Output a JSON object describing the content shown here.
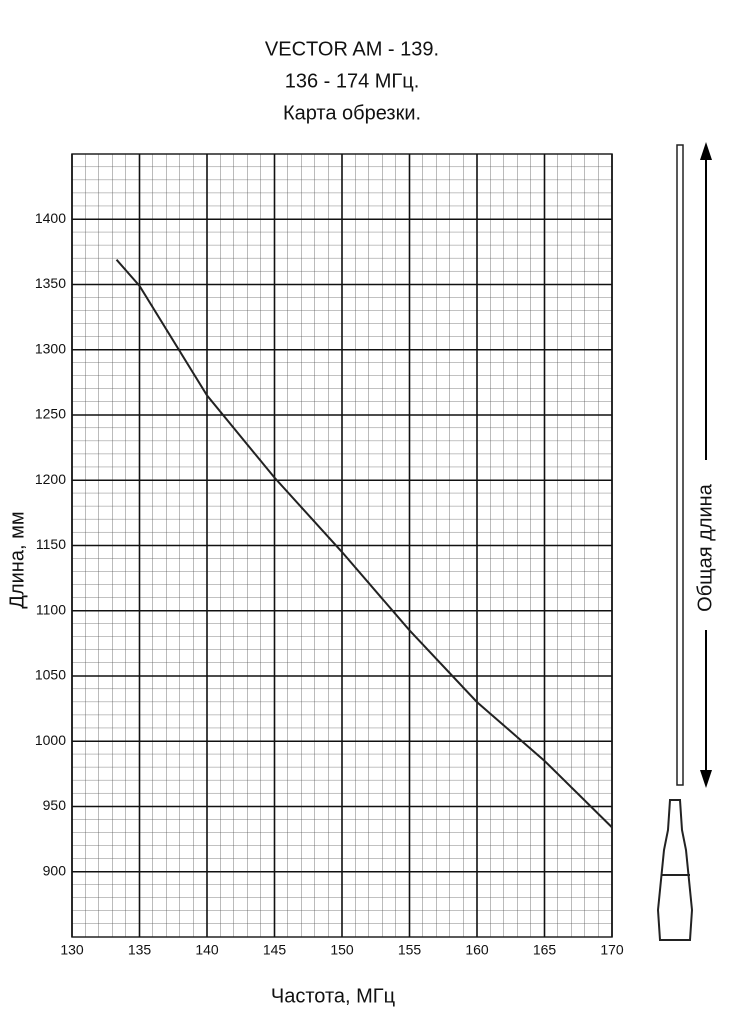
{
  "chart_data": {
    "type": "line",
    "title": [
      "VECTOR AM - 139.",
      "136 - 174 МГц.",
      "Карта обрезки."
    ],
    "x_label": "Частота, МГц",
    "y_label": "Длина, мм",
    "annotation": "Общая длина",
    "x": [
      133.3,
      135,
      140,
      145,
      150,
      155,
      160,
      165,
      170
    ],
    "series": [
      {
        "color": "#222222",
        "values": [
          1369,
          1349,
          1265,
          1202,
          1145,
          1085,
          1030,
          985,
          934
        ]
      }
    ],
    "xlim": [
      130,
      170
    ],
    "xticks": [
      130,
      135,
      140,
      145,
      150,
      155,
      160,
      165,
      170
    ],
    "ylim": [
      850,
      1450
    ],
    "yticks": [
      900,
      950,
      1000,
      1050,
      1100,
      1150,
      1200,
      1250,
      1300,
      1350,
      1400
    ],
    "grid": true
  }
}
